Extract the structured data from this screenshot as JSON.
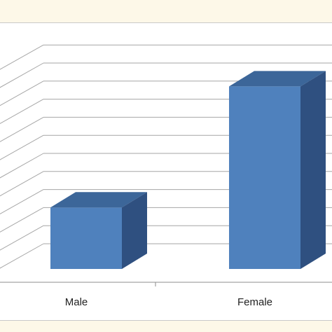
{
  "chart_data": {
    "type": "bar",
    "categories": [
      "Male",
      "Female"
    ],
    "values": [
      3.4,
      10.1
    ],
    "ylim": [
      0,
      11
    ],
    "grid": true,
    "style": "3d-column",
    "colors": {
      "bar_front": "#4f81bd",
      "bar_side": "#2f5080",
      "bar_top": "#3c6699",
      "grid": "#a6a6a6"
    }
  }
}
